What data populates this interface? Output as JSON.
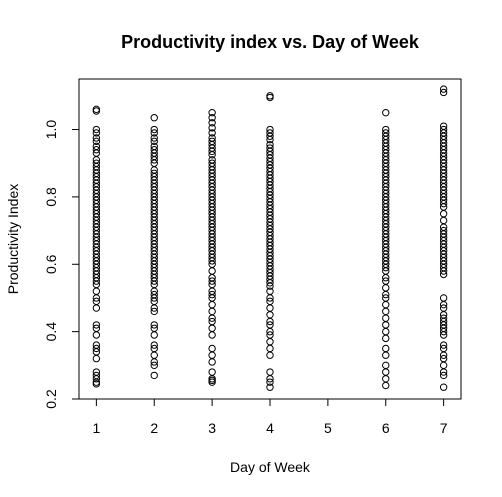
{
  "chart_data": {
    "type": "scatter",
    "title": "Productivity index vs. Day of Week",
    "xlabel": "Day of Week",
    "ylabel": "Productivity Index",
    "xlim": [
      0.7,
      7.3
    ],
    "ylim": [
      0.2,
      1.15
    ],
    "x_ticks": [
      1,
      2,
      3,
      4,
      5,
      6,
      7
    ],
    "y_ticks": [
      0.2,
      0.4,
      0.6,
      0.8,
      1.0
    ],
    "y_tick_labels": [
      "0.2",
      "0.4",
      "0.6",
      "0.8",
      "1.0"
    ],
    "grid": false,
    "marker": "open-circle",
    "series": [
      {
        "x_value": 1,
        "values": [
          1.06,
          1.055,
          1.0,
          0.99,
          0.975,
          0.965,
          0.95,
          0.94,
          0.93,
          0.91,
          0.9,
          0.89,
          0.88,
          0.87,
          0.86,
          0.85,
          0.84,
          0.83,
          0.82,
          0.81,
          0.8,
          0.79,
          0.78,
          0.77,
          0.76,
          0.75,
          0.74,
          0.73,
          0.72,
          0.71,
          0.7,
          0.69,
          0.68,
          0.67,
          0.66,
          0.65,
          0.64,
          0.63,
          0.62,
          0.61,
          0.6,
          0.59,
          0.58,
          0.57,
          0.56,
          0.55,
          0.54,
          0.52,
          0.5,
          0.49,
          0.47,
          0.42,
          0.41,
          0.39,
          0.36,
          0.35,
          0.34,
          0.32,
          0.28,
          0.27,
          0.26,
          0.25,
          0.245
        ]
      },
      {
        "x_value": 2,
        "values": [
          1.035,
          1.0,
          0.99,
          0.975,
          0.965,
          0.95,
          0.94,
          0.93,
          0.92,
          0.91,
          0.9,
          0.88,
          0.87,
          0.86,
          0.85,
          0.84,
          0.83,
          0.82,
          0.81,
          0.8,
          0.79,
          0.78,
          0.77,
          0.76,
          0.75,
          0.74,
          0.73,
          0.72,
          0.71,
          0.7,
          0.69,
          0.68,
          0.67,
          0.66,
          0.65,
          0.64,
          0.63,
          0.62,
          0.61,
          0.6,
          0.59,
          0.58,
          0.57,
          0.56,
          0.55,
          0.54,
          0.52,
          0.51,
          0.5,
          0.49,
          0.47,
          0.46,
          0.42,
          0.41,
          0.39,
          0.36,
          0.35,
          0.33,
          0.31,
          0.3,
          0.27
        ]
      },
      {
        "x_value": 3,
        "values": [
          1.05,
          1.035,
          1.02,
          1.005,
          0.99,
          0.975,
          0.965,
          0.955,
          0.945,
          0.935,
          0.925,
          0.91,
          0.9,
          0.89,
          0.88,
          0.87,
          0.86,
          0.85,
          0.84,
          0.83,
          0.82,
          0.81,
          0.8,
          0.79,
          0.78,
          0.77,
          0.76,
          0.75,
          0.74,
          0.73,
          0.72,
          0.71,
          0.7,
          0.69,
          0.68,
          0.67,
          0.66,
          0.65,
          0.64,
          0.63,
          0.62,
          0.61,
          0.6,
          0.58,
          0.56,
          0.55,
          0.54,
          0.52,
          0.51,
          0.5,
          0.48,
          0.46,
          0.44,
          0.43,
          0.41,
          0.39,
          0.35,
          0.33,
          0.31,
          0.28,
          0.26,
          0.255,
          0.25
        ]
      },
      {
        "x_value": 4,
        "values": [
          1.1,
          1.095,
          1.0,
          0.99,
          0.98,
          0.97,
          0.955,
          0.945,
          0.935,
          0.925,
          0.915,
          0.905,
          0.895,
          0.885,
          0.875,
          0.865,
          0.855,
          0.845,
          0.835,
          0.825,
          0.815,
          0.805,
          0.795,
          0.785,
          0.775,
          0.765,
          0.755,
          0.745,
          0.735,
          0.725,
          0.715,
          0.705,
          0.695,
          0.685,
          0.675,
          0.665,
          0.655,
          0.645,
          0.635,
          0.625,
          0.615,
          0.605,
          0.595,
          0.585,
          0.575,
          0.565,
          0.555,
          0.545,
          0.535,
          0.52,
          0.5,
          0.49,
          0.47,
          0.45,
          0.43,
          0.42,
          0.4,
          0.39,
          0.37,
          0.35,
          0.33,
          0.28,
          0.26,
          0.25,
          0.235
        ]
      },
      {
        "x_value": 6,
        "values": [
          1.05,
          1.0,
          0.99,
          0.98,
          0.97,
          0.96,
          0.95,
          0.94,
          0.93,
          0.92,
          0.91,
          0.9,
          0.89,
          0.88,
          0.87,
          0.86,
          0.85,
          0.84,
          0.83,
          0.82,
          0.81,
          0.8,
          0.79,
          0.78,
          0.77,
          0.76,
          0.75,
          0.74,
          0.73,
          0.72,
          0.71,
          0.7,
          0.69,
          0.68,
          0.67,
          0.66,
          0.65,
          0.64,
          0.63,
          0.62,
          0.61,
          0.6,
          0.59,
          0.58,
          0.56,
          0.55,
          0.53,
          0.51,
          0.5,
          0.48,
          0.46,
          0.44,
          0.42,
          0.4,
          0.38,
          0.35,
          0.33,
          0.3,
          0.28,
          0.26,
          0.24
        ]
      },
      {
        "x_value": 7,
        "values": [
          1.12,
          1.11,
          1.01,
          1.0,
          0.99,
          0.98,
          0.97,
          0.96,
          0.95,
          0.94,
          0.93,
          0.92,
          0.91,
          0.9,
          0.89,
          0.88,
          0.87,
          0.86,
          0.85,
          0.84,
          0.83,
          0.82,
          0.81,
          0.8,
          0.79,
          0.78,
          0.77,
          0.75,
          0.73,
          0.71,
          0.7,
          0.69,
          0.68,
          0.67,
          0.66,
          0.65,
          0.64,
          0.63,
          0.62,
          0.61,
          0.6,
          0.59,
          0.58,
          0.57,
          0.5,
          0.48,
          0.47,
          0.45,
          0.44,
          0.43,
          0.42,
          0.41,
          0.4,
          0.39,
          0.36,
          0.35,
          0.33,
          0.32,
          0.3,
          0.28,
          0.27,
          0.235
        ]
      }
    ]
  }
}
